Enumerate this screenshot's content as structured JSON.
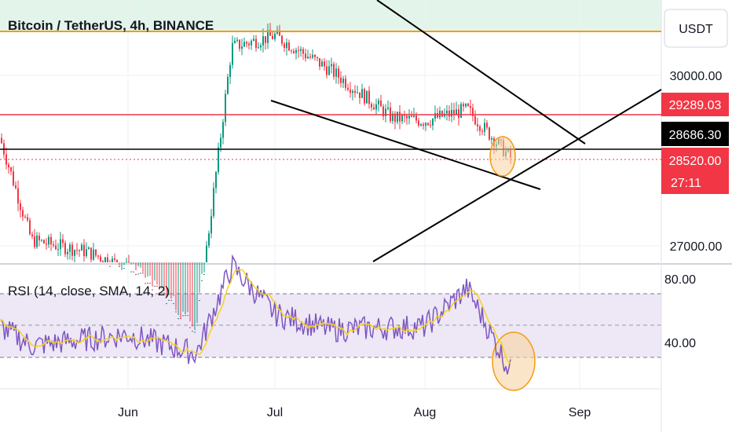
{
  "chart_data": [
    {
      "type": "candlestick",
      "title": "Bitcoin / TetherUS, 4h, BINANCE",
      "currency_label": "USDT",
      "x_ticks": [
        "Jun",
        "Jul",
        "Aug",
        "Sep"
      ],
      "y_ticks": [
        30000.0,
        27000.0
      ],
      "y_ticks_text": [
        "30000.00",
        "27000.00"
      ],
      "levels": [
        {
          "name": "orange-resistance",
          "color": "#f39c12",
          "value": 30600
        },
        {
          "name": "red-level",
          "value": 29289.03,
          "text": "29289.03",
          "color": "#f23645"
        },
        {
          "name": "black-level",
          "value": 28686.3,
          "text": "28686.30",
          "color": "#000000"
        },
        {
          "name": "last-price",
          "value": 28520.0,
          "text": "28520.00",
          "color": "#f23645",
          "countdown": "27:11"
        }
      ],
      "approx_price_path": [
        {
          "month": "early May",
          "price": 28900
        },
        {
          "month": "mid May",
          "price": 27100
        },
        {
          "month": "late May",
          "price": 26900
        },
        {
          "month": "Jun",
          "price": 26600
        },
        {
          "month": "mid Jun",
          "price": 25500
        },
        {
          "month": "late Jun",
          "price": 30500
        },
        {
          "month": "Jul",
          "price": 30700
        },
        {
          "month": "mid Jul",
          "price": 30100
        },
        {
          "month": "late Jul",
          "price": 29250
        },
        {
          "month": "Aug",
          "price": 29200
        },
        {
          "month": "mid Aug",
          "price": 29400
        },
        {
          "month": "latest",
          "price": 28520
        }
      ]
    },
    {
      "type": "line",
      "title": "RSI (14, close, SMA, 14, 2)",
      "y_ticks": [
        80.0,
        40.0
      ],
      "y_ticks_text": [
        "80.00",
        "40.00"
      ],
      "bands": {
        "upper": 70,
        "middle": 50,
        "lower": 30
      },
      "series": [
        {
          "name": "RSI",
          "color": "#7e57c2"
        },
        {
          "name": "SMA",
          "color": "#f7d21e"
        }
      ],
      "approx_rsi_path": [
        {
          "month": "May",
          "rsi": 50
        },
        {
          "month": "mid May",
          "rsi": 38
        },
        {
          "month": "Jun",
          "rsi": 45
        },
        {
          "month": "mid Jun",
          "rsi": 33
        },
        {
          "month": "late Jun",
          "rsi": 88
        },
        {
          "month": "Jul",
          "rsi": 58
        },
        {
          "month": "mid Jul",
          "rsi": 48
        },
        {
          "month": "Aug",
          "rsi": 50
        },
        {
          "month": "mid Aug",
          "rsi": 74
        },
        {
          "month": "latest",
          "rsi": 20
        }
      ]
    }
  ]
}
